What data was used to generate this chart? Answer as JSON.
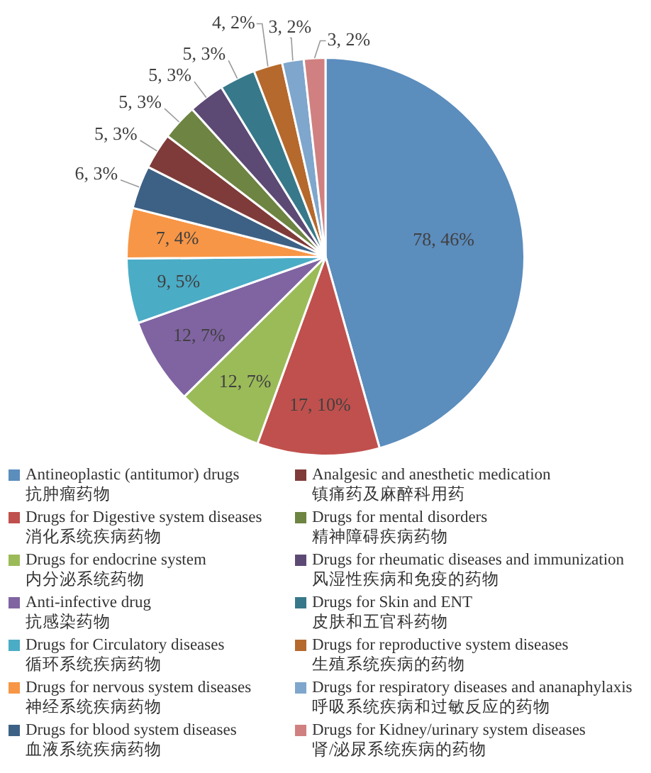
{
  "chart_data": {
    "type": "pie",
    "legend": "bottom",
    "categories": [
      "Antineoplastic (antitumor) drugs\n抗肿瘤药物",
      "Drugs for Digestive system diseases\n消化系统疾病药物",
      "Drugs for endocrine system\n内分泌系统药物",
      "Anti-infective drug\n抗感染药物",
      "Drugs for Circulatory diseases\n循环系统疾病药物",
      "Drugs for nervous system diseases\n神经系统疾病药物",
      "Drugs for blood system diseases\n血液系统疾病药物",
      "Analgesic and anesthetic medication\n镇痛药及麻醉科用药",
      "Drugs for mental disorders\n精神障碍疾病药物",
      "Drugs for rheumatic diseases and immunization\n风湿性疾病和免疫的药物",
      "Drugs for Skin and ENT\n皮肤和五官科药物",
      "Drugs for reproductive system diseases\n生殖系统疾病的药物",
      "Drugs for respiratory diseases and ananaphylaxis\n呼吸系统疾病和过敏反应的药物",
      "Drugs for Kidney/urinary system diseases\n肾/泌尿系统疾病的药物"
    ],
    "values": [
      78,
      17,
      12,
      12,
      9,
      7,
      6,
      5,
      5,
      5,
      5,
      4,
      3,
      3
    ],
    "value_labels": [
      "78, 46%",
      "17, 10%",
      "12, 7%",
      "12, 7%",
      "9, 5%",
      "7, 4%",
      "6, 3%",
      "5, 3%",
      "5, 3%",
      "5, 3%",
      "5, 3%",
      "4, 2%",
      "3, 2%",
      "3, 2%"
    ],
    "colors": [
      "#5b8dbd",
      "#c0504d",
      "#9bbb59",
      "#8064a2",
      "#4bacc6",
      "#f79646",
      "#3d6185",
      "#7f3b39",
      "#6d8442",
      "#5c4a75",
      "#37798a",
      "#b5692c",
      "#7fa6cc",
      "#d08080"
    ]
  }
}
